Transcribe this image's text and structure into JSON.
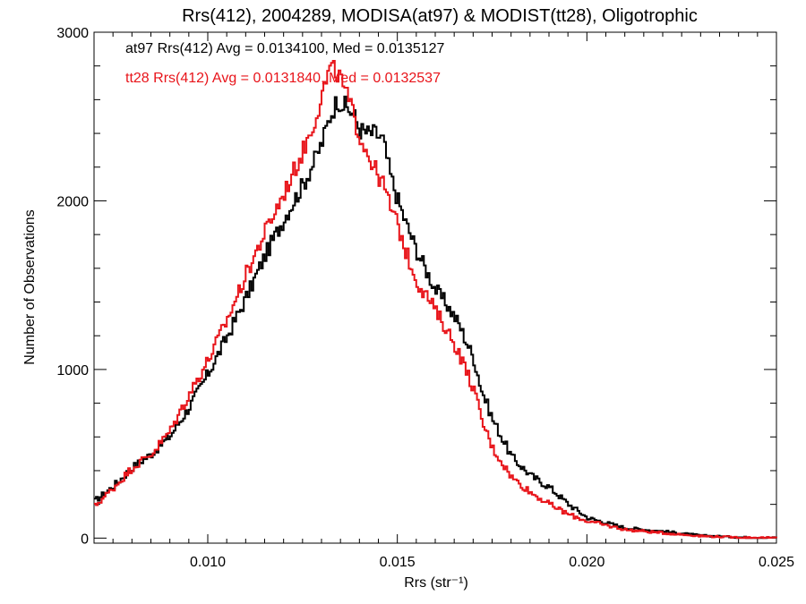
{
  "chart_data": {
    "type": "line",
    "title": "Rrs(412), 2004289, MODISA(at97) & MODIST(tt28), Oligotrophic",
    "xlabel": "Rrs (str⁻¹)",
    "ylabel": "Number of Observations",
    "xlim": [
      0.007,
      0.025
    ],
    "ylim": [
      -30,
      3000
    ],
    "xticks": [
      0.01,
      0.015,
      0.02,
      0.025
    ],
    "xtick_labels": [
      "0.010",
      "0.015",
      "0.020",
      "0.025"
    ],
    "yticks": [
      0,
      1000,
      2000,
      3000
    ],
    "ytick_labels": [
      "0",
      "1000",
      "2000",
      "3000"
    ],
    "grid": false,
    "annotations": [
      {
        "text": "at97 Rrs(412) Avg = 0.0134100, Med = 0.0135127",
        "color": "#000000"
      },
      {
        "text": "tt28 Rrs(412) Avg = 0.0131840, Med = 0.0132537",
        "color": "#e8141a"
      }
    ],
    "series": [
      {
        "color": "#000000",
        "x": [
          0.007,
          0.0075,
          0.008,
          0.0085,
          0.009,
          0.0095,
          0.01,
          0.0105,
          0.011,
          0.0115,
          0.012,
          0.0125,
          0.0128,
          0.013,
          0.0132,
          0.0134,
          0.0136,
          0.0138,
          0.014,
          0.0142,
          0.0144,
          0.0146,
          0.0148,
          0.015,
          0.0152,
          0.0155,
          0.0158,
          0.016,
          0.0163,
          0.0166,
          0.017,
          0.0172,
          0.0175,
          0.018,
          0.0185,
          0.019,
          0.0195,
          0.02,
          0.0205,
          0.021,
          0.022,
          0.023,
          0.024,
          0.025
        ],
        "y": [
          220,
          310,
          420,
          500,
          610,
          780,
          980,
          1200,
          1430,
          1680,
          1900,
          2100,
          2240,
          2350,
          2500,
          2600,
          2560,
          2520,
          2420,
          2400,
          2400,
          2360,
          2150,
          2000,
          1870,
          1700,
          1560,
          1470,
          1380,
          1270,
          1060,
          880,
          700,
          480,
          370,
          300,
          200,
          120,
          90,
          60,
          40,
          15,
          5,
          2
        ]
      },
      {
        "color": "#e8141a",
        "x": [
          0.007,
          0.0075,
          0.008,
          0.0085,
          0.009,
          0.0095,
          0.01,
          0.0105,
          0.011,
          0.0115,
          0.012,
          0.0125,
          0.0128,
          0.013,
          0.0132,
          0.0134,
          0.0136,
          0.0138,
          0.014,
          0.0142,
          0.0144,
          0.0146,
          0.0148,
          0.015,
          0.0152,
          0.0155,
          0.0158,
          0.016,
          0.0163,
          0.0166,
          0.017,
          0.0172,
          0.0175,
          0.018,
          0.0185,
          0.019,
          0.0195,
          0.02,
          0.0205,
          0.021,
          0.022,
          0.023,
          0.024,
          0.025
        ],
        "y": [
          190,
          300,
          420,
          500,
          640,
          860,
          1060,
          1300,
          1570,
          1820,
          2050,
          2300,
          2480,
          2640,
          2780,
          2760,
          2650,
          2520,
          2380,
          2280,
          2180,
          2100,
          1960,
          1850,
          1700,
          1520,
          1420,
          1340,
          1230,
          1100,
          880,
          700,
          530,
          360,
          270,
          200,
          140,
          100,
          75,
          50,
          30,
          12,
          4,
          1
        ]
      }
    ]
  }
}
